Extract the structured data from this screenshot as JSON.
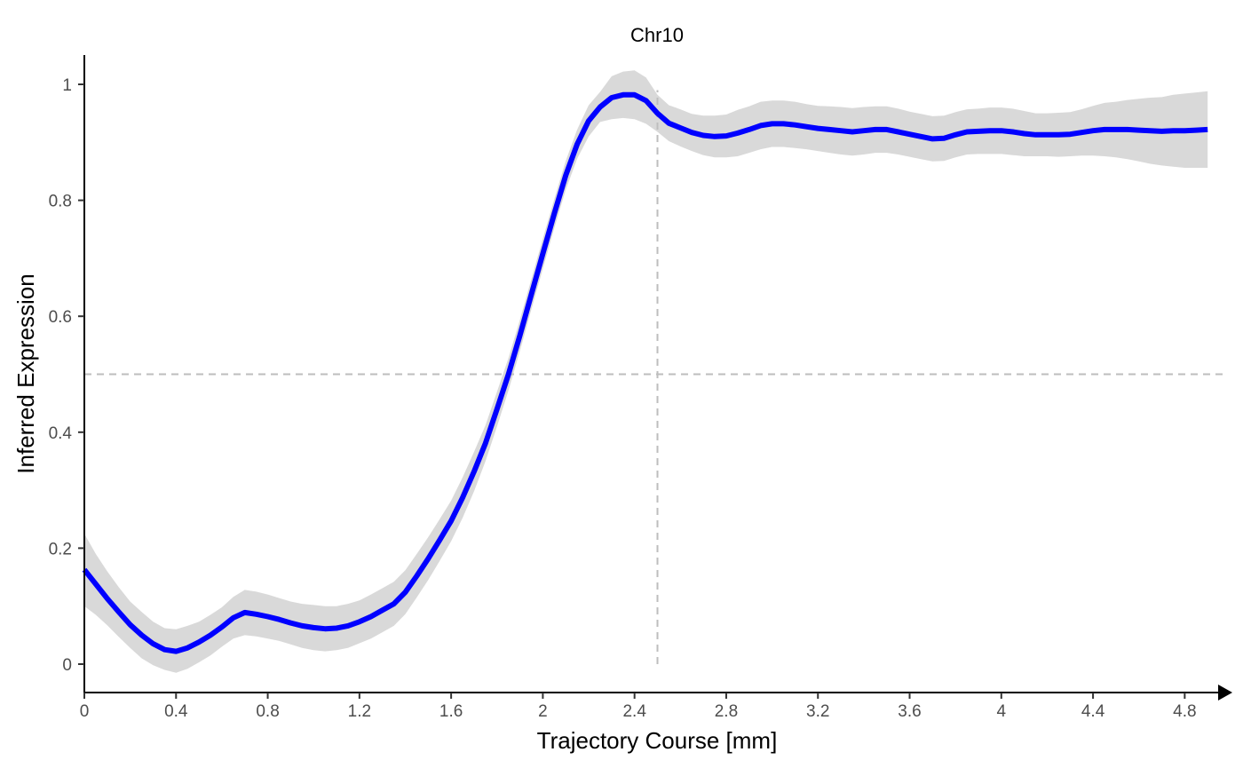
{
  "chart_data": {
    "type": "line",
    "title": "Chr10",
    "xlabel": "Trajectory Course [mm]",
    "ylabel": "Inferred Expression",
    "xlim": [
      0,
      4.9
    ],
    "ylim": [
      -0.05,
      1.05
    ],
    "x_ticks": [
      0,
      0.4,
      0.8,
      1.2,
      1.6,
      2,
      2.4,
      2.8,
      3.2,
      3.6,
      4,
      4.4,
      4.8
    ],
    "x_tick_labels": [
      "0",
      "0.4",
      "0.8",
      "1.2",
      "1.6",
      "2",
      "2.4",
      "2.8",
      "3.2",
      "3.6",
      "4",
      "4.4",
      "4.8"
    ],
    "y_ticks": [
      0,
      0.2,
      0.4,
      0.6,
      0.8,
      1
    ],
    "y_tick_labels": [
      "0",
      "0.2",
      "0.4",
      "0.6",
      "0.8",
      "1"
    ],
    "grid": false,
    "reference_lines": {
      "horizontal_y": 0.5,
      "vertical_x": 2.5,
      "style": "dashed",
      "color": "#bebebe"
    },
    "colors": {
      "line": "#0000ff",
      "ribbon": "#d9d9d9",
      "axis": "#000000"
    },
    "series": [
      {
        "x": [
          0,
          0.05,
          0.1,
          0.15,
          0.2,
          0.25,
          0.3,
          0.35,
          0.4,
          0.45,
          0.5,
          0.55,
          0.6,
          0.65,
          0.7,
          0.75,
          0.8,
          0.85,
          0.9,
          0.95,
          1.0,
          1.05,
          1.1,
          1.15,
          1.2,
          1.25,
          1.3,
          1.35,
          1.4,
          1.45,
          1.5,
          1.55,
          1.6,
          1.65,
          1.7,
          1.75,
          1.8,
          1.85,
          1.9,
          1.95,
          2.0,
          2.05,
          2.1,
          2.15,
          2.2,
          2.25,
          2.3,
          2.35,
          2.4,
          2.45,
          2.5,
          2.55,
          2.6,
          2.65,
          2.7,
          2.75,
          2.8,
          2.85,
          2.9,
          2.95,
          3.0,
          3.05,
          3.1,
          3.15,
          3.2,
          3.25,
          3.3,
          3.35,
          3.4,
          3.45,
          3.5,
          3.55,
          3.6,
          3.65,
          3.7,
          3.75,
          3.8,
          3.85,
          3.9,
          3.95,
          4.0,
          4.05,
          4.1,
          4.15,
          4.2,
          4.25,
          4.3,
          4.35,
          4.4,
          4.45,
          4.5,
          4.55,
          4.6,
          4.65,
          4.7,
          4.75,
          4.8,
          4.85,
          4.9
        ],
        "y": [
          0.163,
          0.138,
          0.113,
          0.09,
          0.068,
          0.05,
          0.035,
          0.025,
          0.022,
          0.028,
          0.038,
          0.05,
          0.064,
          0.08,
          0.089,
          0.086,
          0.082,
          0.077,
          0.071,
          0.066,
          0.063,
          0.061,
          0.062,
          0.066,
          0.073,
          0.082,
          0.093,
          0.104,
          0.124,
          0.152,
          0.182,
          0.214,
          0.247,
          0.287,
          0.332,
          0.381,
          0.44,
          0.5,
          0.567,
          0.638,
          0.708,
          0.777,
          0.843,
          0.897,
          0.937,
          0.961,
          0.977,
          0.982,
          0.982,
          0.972,
          0.95,
          0.933,
          0.925,
          0.917,
          0.912,
          0.91,
          0.911,
          0.916,
          0.922,
          0.929,
          0.932,
          0.932,
          0.93,
          0.927,
          0.924,
          0.922,
          0.92,
          0.918,
          0.92,
          0.922,
          0.922,
          0.918,
          0.914,
          0.91,
          0.906,
          0.907,
          0.913,
          0.918,
          0.919,
          0.92,
          0.92,
          0.918,
          0.915,
          0.913,
          0.913,
          0.913,
          0.914,
          0.917,
          0.92,
          0.922,
          0.922,
          0.922,
          0.921,
          0.92,
          0.919,
          0.92,
          0.92,
          0.921,
          0.922
        ],
        "lower": [
          0.1,
          0.085,
          0.067,
          0.047,
          0.028,
          0.01,
          -0.002,
          -0.01,
          -0.015,
          -0.008,
          0.003,
          0.015,
          0.03,
          0.044,
          0.05,
          0.048,
          0.044,
          0.04,
          0.034,
          0.028,
          0.024,
          0.022,
          0.024,
          0.028,
          0.036,
          0.044,
          0.055,
          0.066,
          0.086,
          0.115,
          0.145,
          0.178,
          0.212,
          0.252,
          0.298,
          0.35,
          0.41,
          0.472,
          0.54,
          0.612,
          0.682,
          0.752,
          0.818,
          0.872,
          0.91,
          0.935,
          0.94,
          0.942,
          0.94,
          0.932,
          0.918,
          0.902,
          0.893,
          0.885,
          0.878,
          0.874,
          0.874,
          0.876,
          0.882,
          0.888,
          0.892,
          0.892,
          0.89,
          0.888,
          0.885,
          0.882,
          0.879,
          0.877,
          0.879,
          0.882,
          0.882,
          0.879,
          0.875,
          0.871,
          0.867,
          0.868,
          0.874,
          0.879,
          0.88,
          0.88,
          0.88,
          0.878,
          0.876,
          0.876,
          0.876,
          0.875,
          0.876,
          0.877,
          0.877,
          0.876,
          0.874,
          0.871,
          0.867,
          0.863,
          0.86,
          0.858,
          0.856,
          0.856,
          0.856
        ],
        "upper": [
          0.225,
          0.19,
          0.16,
          0.133,
          0.108,
          0.09,
          0.073,
          0.062,
          0.06,
          0.066,
          0.073,
          0.085,
          0.098,
          0.116,
          0.128,
          0.125,
          0.12,
          0.114,
          0.108,
          0.104,
          0.102,
          0.1,
          0.1,
          0.104,
          0.11,
          0.12,
          0.131,
          0.142,
          0.162,
          0.19,
          0.219,
          0.25,
          0.282,
          0.322,
          0.366,
          0.412,
          0.47,
          0.528,
          0.594,
          0.664,
          0.734,
          0.802,
          0.868,
          0.922,
          0.964,
          0.987,
          1.014,
          1.022,
          1.024,
          1.012,
          0.982,
          0.964,
          0.957,
          0.949,
          0.946,
          0.946,
          0.948,
          0.956,
          0.962,
          0.97,
          0.972,
          0.972,
          0.97,
          0.966,
          0.963,
          0.962,
          0.961,
          0.959,
          0.961,
          0.962,
          0.962,
          0.958,
          0.953,
          0.949,
          0.945,
          0.946,
          0.952,
          0.957,
          0.958,
          0.96,
          0.96,
          0.958,
          0.954,
          0.95,
          0.95,
          0.951,
          0.952,
          0.957,
          0.963,
          0.968,
          0.97,
          0.973,
          0.975,
          0.977,
          0.978,
          0.982,
          0.984,
          0.986,
          0.988
        ]
      }
    ]
  }
}
